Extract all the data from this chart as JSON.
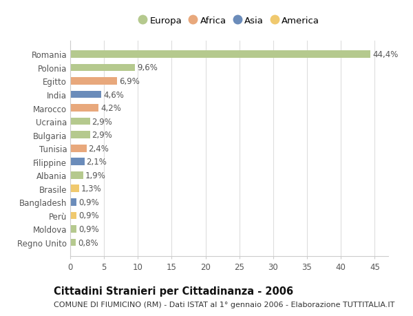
{
  "countries": [
    "Romania",
    "Polonia",
    "Egitto",
    "India",
    "Marocco",
    "Ucraina",
    "Bulgaria",
    "Tunisia",
    "Filippine",
    "Albania",
    "Brasile",
    "Bangladesh",
    "Perù",
    "Moldova",
    "Regno Unito"
  ],
  "values": [
    44.4,
    9.6,
    6.9,
    4.6,
    4.2,
    2.9,
    2.9,
    2.4,
    2.1,
    1.9,
    1.3,
    0.9,
    0.9,
    0.9,
    0.8
  ],
  "labels": [
    "44,4%",
    "9,6%",
    "6,9%",
    "4,6%",
    "4,2%",
    "2,9%",
    "2,9%",
    "2,4%",
    "2,1%",
    "1,9%",
    "1,3%",
    "0,9%",
    "0,9%",
    "0,9%",
    "0,8%"
  ],
  "colors": [
    "#b5c98e",
    "#b5c98e",
    "#e8a87c",
    "#6b8cba",
    "#e8a87c",
    "#b5c98e",
    "#b5c98e",
    "#e8a87c",
    "#6b8cba",
    "#b5c98e",
    "#f0c96e",
    "#6b8cba",
    "#f0c96e",
    "#b5c98e",
    "#b5c98e"
  ],
  "legend": [
    {
      "label": "Europa",
      "color": "#b5c98e"
    },
    {
      "label": "Africa",
      "color": "#e8a87c"
    },
    {
      "label": "Asia",
      "color": "#6b8cba"
    },
    {
      "label": "America",
      "color": "#f0c96e"
    }
  ],
  "xlim": [
    0,
    47
  ],
  "xticks": [
    0,
    5,
    10,
    15,
    20,
    25,
    30,
    35,
    40,
    45
  ],
  "title": "Cittadini Stranieri per Cittadinanza - 2006",
  "subtitle": "COMUNE DI FIUMICINO (RM) - Dati ISTAT al 1° gennaio 2006 - Elaborazione TUTTITALIA.IT",
  "bg_color": "#ffffff",
  "plot_bg_color": "#ffffff",
  "bar_height": 0.55,
  "label_fontsize": 8.5,
  "tick_fontsize": 8.5,
  "title_fontsize": 10.5,
  "subtitle_fontsize": 8
}
